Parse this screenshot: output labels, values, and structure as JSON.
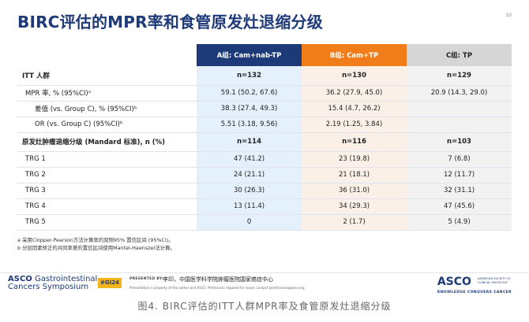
{
  "slide": {
    "title": "BIRC评估的MPR率和食管原发灶退缩分级",
    "page_number": "10"
  },
  "table": {
    "headers": [
      "",
      "A组: Cam+nab-TP",
      "B组: Cam+TP",
      "C组: TP"
    ],
    "header_colors": {
      "A": "#1d3a78",
      "B": "#f07d1a",
      "C": "#d6d6d6"
    },
    "rows": [
      {
        "label": "ITT 人群",
        "a": "n=132",
        "b": "n=130",
        "c": "n=129",
        "style": "bold"
      },
      {
        "label": "MPR 率, % (95%CI)ᵃ",
        "a": "59.1 (50.2, 67.6)",
        "b": "36.2 (27.9, 45.0)",
        "c": "20.9 (14.3, 29.0)",
        "style": "indent1"
      },
      {
        "label": "差值 (vs. Group C), % (95%CI)ᵇ",
        "a": "38.3 (27.4, 49.3)",
        "b": "15.4 (4.7, 26.2)",
        "c": "",
        "style": "indent2"
      },
      {
        "label": "OR (vs. Group C) (95%CI)ᵇ",
        "a": "5.51 (3.18, 9.56)",
        "b": "2.19 (1.25, 3.84)",
        "c": "",
        "style": "indent2"
      },
      {
        "label": "原发灶肿瘤退缩分级 (Mandard 标准), n (%)",
        "a": "n=114",
        "b": "n=116",
        "c": "n=103",
        "style": "bold"
      },
      {
        "label": "TRG 1",
        "a": "47 (41.2)",
        "b": "23 (19.8)",
        "c": "7 (6.8)",
        "style": "indent1"
      },
      {
        "label": "TRG 2",
        "a": "24 (21.1)",
        "b": "21 (18.1)",
        "c": "12 (11.7)",
        "style": "indent1"
      },
      {
        "label": "TRG 3",
        "a": "30 (26.3)",
        "b": "36 (31.0)",
        "c": "32 (31.1)",
        "style": "indent1"
      },
      {
        "label": "TRG 4",
        "a": "13 (11.4)",
        "b": "34 (29.3)",
        "c": "47 (45.6)",
        "style": "indent1"
      },
      {
        "label": "TRG 5",
        "a": "0",
        "b": "2 (1.7)",
        "c": "5 (4.9)",
        "style": "indent1"
      }
    ]
  },
  "notes": {
    "a": "a 采用Clopper-Pearson方法计算率的双侧95% 置信区间 (95%CI)。",
    "b": "b 分层因素矫正的共同率差的置信区间使用Mantel-Haenszel法计算。"
  },
  "footer": {
    "asco_line1_bold": "ASCO",
    "asco_line1_rest": " Gastrointestinal",
    "asco_line2": "Cancers Symposium",
    "tag": "#GI24",
    "presented_by": "PRESENTED BY:",
    "presenter": "李印，中国医学科学院肿瘤医院国家癌症中心",
    "property_line1": "Presentation is property of the author and ASCO. Permission required for reuse; contact permissions@asco.org",
    "asco_logo": "ASCO",
    "asco_society_line1": "AMERICAN SOCIETY OF",
    "asco_society_line2": "CLINICAL ONCOLOGY",
    "asco_tagline": "KNOWLEDGE CONQUERS CANCER"
  },
  "caption": "图4. BIRC评估的ITT人群MPR率及食管原发灶退缩分级"
}
